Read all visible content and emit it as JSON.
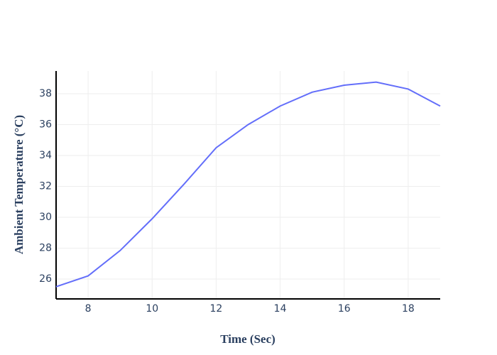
{
  "chart_data": {
    "type": "line",
    "x_label": "Time (Sec)",
    "y_label": "Ambient Temperature (°C)",
    "x": [
      7,
      8,
      9,
      10,
      11,
      12,
      13,
      14,
      15,
      16,
      17,
      18,
      19
    ],
    "series": [
      {
        "name": "Ambient Temperature",
        "color": "#636efa",
        "values": [
          25.5,
          26.2,
          27.84,
          29.9,
          32.15,
          34.5,
          36.0,
          37.2,
          38.1,
          38.55,
          38.75,
          38.3,
          37.2
        ]
      }
    ],
    "xlim": [
      7,
      19
    ],
    "xticks": [
      8,
      10,
      12,
      14,
      16,
      18
    ],
    "ylim": [
      24.71,
      39.47
    ],
    "yticks": [
      26,
      28,
      30,
      32,
      34,
      36,
      38
    ],
    "grid": true
  }
}
